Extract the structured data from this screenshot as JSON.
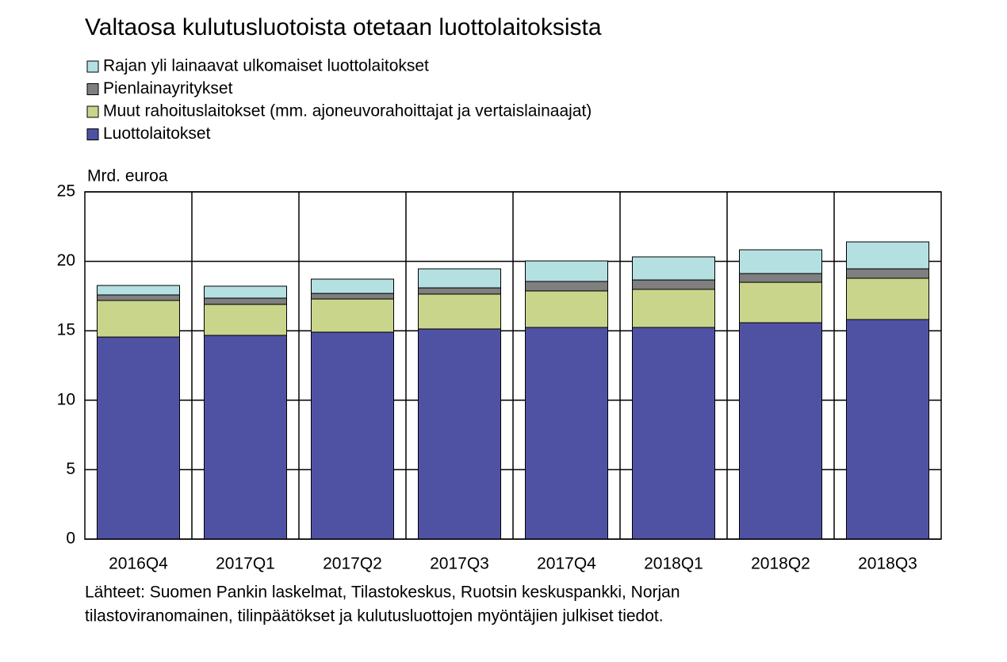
{
  "chart_data": {
    "type": "stacked_bar",
    "title": "Valtaosa kulutusluotoista otetaan luottolaitoksista",
    "y_label": "Mrd. euroa",
    "source": [
      "Lähteet: Suomen Pankin laskelmat, Tilastokeskus, Ruotsin keskuspankki, Norjan",
      "tilastoviranomainen, tilinpäätökset ja kulutusluottojen myöntäjien julkiset tiedot."
    ],
    "categories": [
      "2016Q4",
      "2017Q1",
      "2017Q2",
      "2017Q3",
      "2017Q4",
      "2018Q1",
      "2018Q2",
      "2018Q3"
    ],
    "series": [
      {
        "name": "Luottolaitokset",
        "color": "#4f52a3",
        "values": [
          14.55,
          14.67,
          14.9,
          15.13,
          15.24,
          15.24,
          15.58,
          15.81
        ]
      },
      {
        "name": "Muut rahoituslaitokset (mm. ajoneuvorahoittajat ja vertaislainaajat)",
        "color": "#cad58c",
        "values": [
          2.63,
          2.23,
          2.39,
          2.51,
          2.63,
          2.74,
          2.91,
          2.97
        ]
      },
      {
        "name": "Pienlainayritykset",
        "color": "#7f7f7f",
        "values": [
          0.4,
          0.45,
          0.4,
          0.45,
          0.68,
          0.68,
          0.63,
          0.68
        ]
      },
      {
        "name": "Rajan yli lainaavat ulkomaiset luottolaitokset",
        "color": "#b4e0e2",
        "values": [
          0.68,
          0.86,
          1.03,
          1.37,
          1.48,
          1.66,
          1.71,
          1.94
        ]
      }
    ],
    "ylim": [
      0,
      25
    ],
    "yticks": [
      0,
      5,
      10,
      15,
      20,
      25
    ],
    "grid": true
  }
}
